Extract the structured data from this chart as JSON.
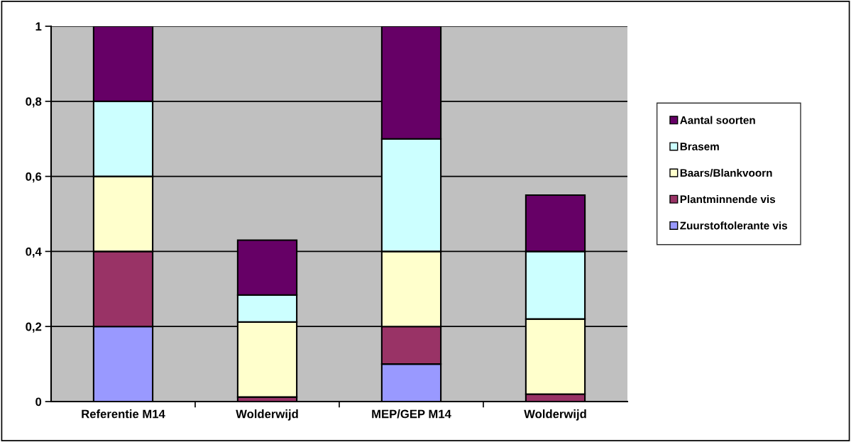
{
  "chart_data": {
    "type": "bar",
    "stacked": true,
    "categories": [
      "Referentie M14",
      "Wolderwijd",
      "MEP/GEP M14",
      "Wolderwijd"
    ],
    "series": [
      {
        "name": "Zuurstoftolerante vis",
        "color": "#9999ff",
        "values": [
          0.2,
          0,
          0.1,
          0
        ]
      },
      {
        "name": "Plantminnende vis",
        "color": "#993366",
        "values": [
          0.2,
          0.012,
          0.1,
          0.02
        ]
      },
      {
        "name": "Baars/Blankvoorn",
        "color": "#ffffcc",
        "values": [
          0.2,
          0.2,
          0.2,
          0.2
        ]
      },
      {
        "name": "Brasem",
        "color": "#ccffff",
        "values": [
          0.2,
          0.072,
          0.3,
          0.18
        ]
      },
      {
        "name": "Aantal soorten",
        "color": "#660066",
        "values": [
          0.2,
          0.146,
          0.3,
          0.15
        ]
      }
    ],
    "ylim": [
      0,
      1
    ],
    "yticks": [
      {
        "value": 0,
        "label": "0"
      },
      {
        "value": 0.2,
        "label": "0,2"
      },
      {
        "value": 0.4,
        "label": "0,4"
      },
      {
        "value": 0.6,
        "label": "0,6"
      },
      {
        "value": 0.8,
        "label": "0,8"
      },
      {
        "value": 1,
        "label": "1"
      }
    ],
    "grid": "y",
    "legend": "right"
  }
}
